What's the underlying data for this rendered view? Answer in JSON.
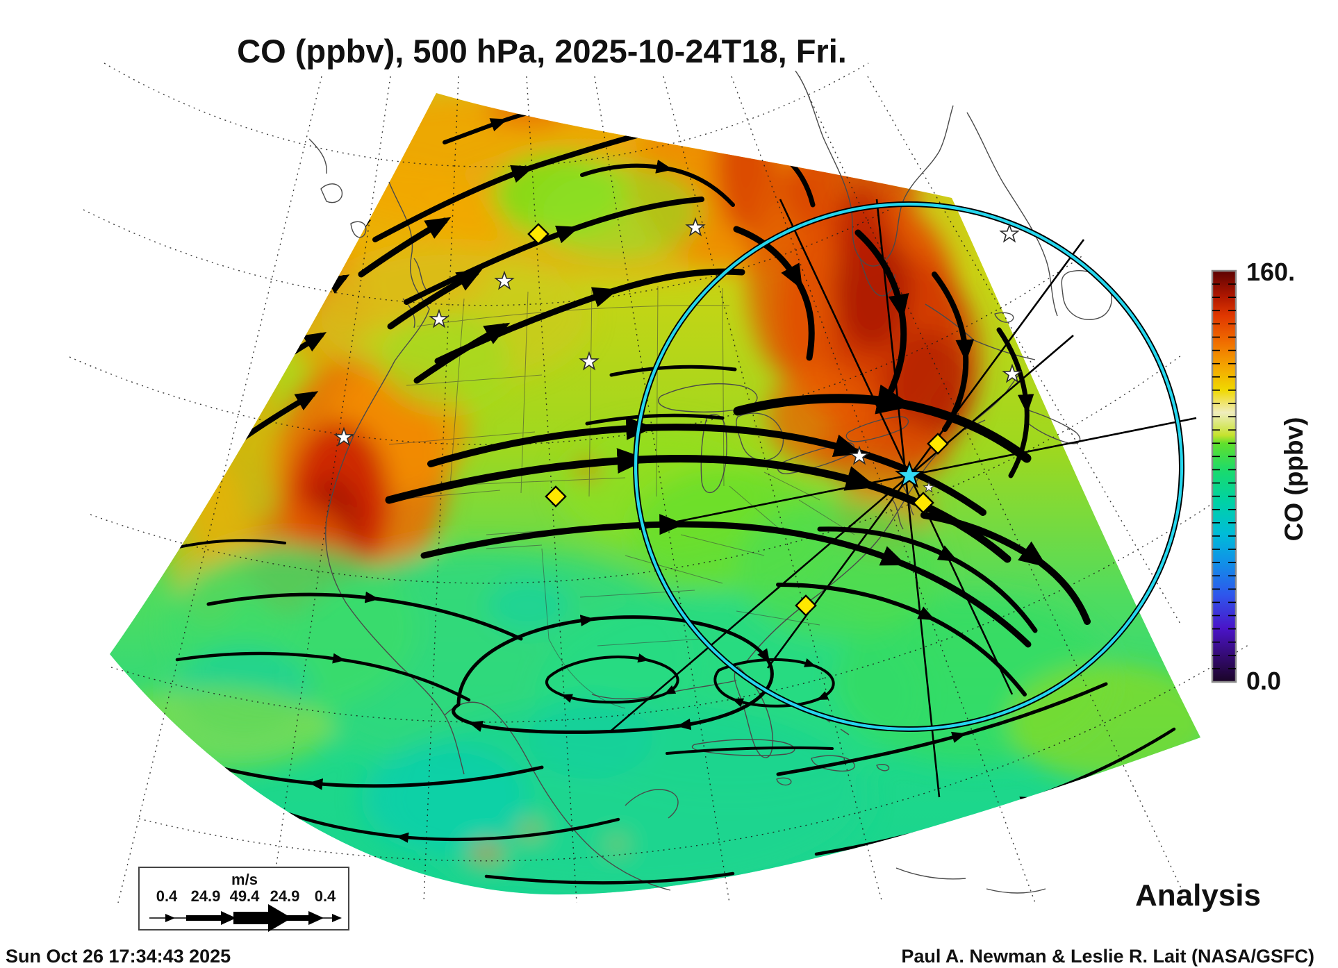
{
  "header": {
    "title": "CO (ppbv), 500 hPa, 2025-10-24T18, Fri."
  },
  "map": {
    "mode_label": "Analysis",
    "field": "CO",
    "unit": "ppbv",
    "level": "500 hPa",
    "valid_time": "2025-10-24T18",
    "valid_day": "Fri",
    "overlay_colors": {
      "range_circle": "#25d7ee",
      "site_star": "#35d9f2",
      "waypoint_diamond": "#ffe800",
      "city_star": "#ffffff"
    },
    "marker_counts": {
      "city_stars": 9,
      "waypoint_diamonds": 5,
      "site_stars": 1,
      "radial_lines": 5,
      "range_circles": 1
    }
  },
  "colorbar": {
    "axis_label": "CO (ppbv)",
    "max_label": "160.",
    "min_label": "0.0",
    "min": 0,
    "max": 160,
    "scale_colors_bottom_to_top": [
      "#1a0426",
      "#4a14c8",
      "#2f55ec",
      "#1190e8",
      "#00bcd8",
      "#00d2a4",
      "#18da70",
      "#60e02c",
      "#c6e22e",
      "#efedbe",
      "#f0d800",
      "#f4a300",
      "#ef6a00",
      "#e13800",
      "#ad1600",
      "#5c0202"
    ]
  },
  "legend": {
    "unit_label": "m/s",
    "ticks": [
      "0.4",
      "24.9",
      "49.4",
      "24.9",
      "0.4"
    ]
  },
  "footer": {
    "timestamp": "Sun Oct 26 17:34:43 2025",
    "credit": "Paul A. Newman & Leslie R. Lait (NASA/GSFC)"
  }
}
